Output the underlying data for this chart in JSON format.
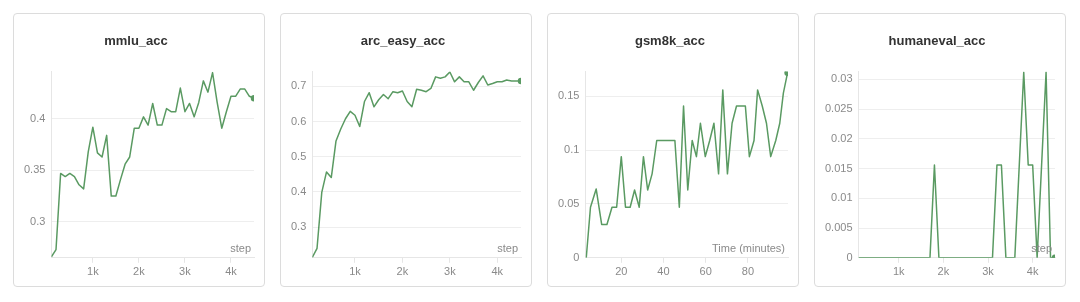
{
  "chart_data": [
    {
      "type": "line",
      "title": "mmlu_acc",
      "xlabel": "step",
      "grid": "y",
      "xlim": [
        100,
        4500
      ],
      "xticks": [
        {
          "value": 1000,
          "label": "1k"
        },
        {
          "value": 2000,
          "label": "2k"
        },
        {
          "value": 3000,
          "label": "3k"
        },
        {
          "value": 4000,
          "label": "4k"
        }
      ],
      "ylim": [
        0.265,
        0.446
      ],
      "yticks": [
        0.3,
        0.35,
        0.4
      ],
      "x": [
        100,
        200,
        300,
        400,
        500,
        600,
        700,
        800,
        900,
        1000,
        1100,
        1200,
        1300,
        1400,
        1500,
        1600,
        1700,
        1800,
        1900,
        2000,
        2100,
        2200,
        2300,
        2400,
        2500,
        2600,
        2700,
        2800,
        2900,
        3000,
        3100,
        3200,
        3300,
        3400,
        3500,
        3600,
        3700,
        3800,
        3900,
        4000,
        4100,
        4200,
        4300,
        4400,
        4500
      ],
      "series": [
        {
          "color": "#5a9a62",
          "values": [
            0.266,
            0.273,
            0.347,
            0.344,
            0.347,
            0.344,
            0.336,
            0.332,
            0.368,
            0.392,
            0.367,
            0.363,
            0.384,
            0.325,
            0.325,
            0.341,
            0.356,
            0.363,
            0.391,
            0.391,
            0.402,
            0.394,
            0.415,
            0.394,
            0.394,
            0.41,
            0.407,
            0.407,
            0.43,
            0.407,
            0.415,
            0.402,
            0.416,
            0.437,
            0.426,
            0.445,
            0.416,
            0.391,
            0.407,
            0.422,
            0.422,
            0.429,
            0.429,
            0.422,
            0.42
          ]
        }
      ]
    },
    {
      "type": "line",
      "title": "arc_easy_acc",
      "xlabel": "step",
      "grid": "y",
      "xlim": [
        100,
        4500
      ],
      "xticks": [
        {
          "value": 1000,
          "label": "1k"
        },
        {
          "value": 2000,
          "label": "2k"
        },
        {
          "value": 3000,
          "label": "3k"
        },
        {
          "value": 4000,
          "label": "4k"
        }
      ],
      "ylim": [
        0.213,
        0.742
      ],
      "yticks": [
        0.3,
        0.4,
        0.5,
        0.6,
        0.7
      ],
      "x": [
        100,
        200,
        300,
        400,
        500,
        600,
        700,
        800,
        900,
        1000,
        1100,
        1200,
        1300,
        1400,
        1500,
        1600,
        1700,
        1800,
        1900,
        2000,
        2100,
        2200,
        2300,
        2400,
        2500,
        2600,
        2700,
        2800,
        2900,
        3000,
        3100,
        3200,
        3300,
        3400,
        3500,
        3600,
        3700,
        3800,
        3900,
        4000,
        4100,
        4200,
        4300,
        4400,
        4500
      ],
      "series": [
        {
          "color": "#5a9a62",
          "values": [
            0.214,
            0.24,
            0.399,
            0.457,
            0.441,
            0.545,
            0.579,
            0.608,
            0.629,
            0.618,
            0.586,
            0.657,
            0.682,
            0.642,
            0.662,
            0.677,
            0.665,
            0.685,
            0.682,
            0.687,
            0.657,
            0.642,
            0.692,
            0.689,
            0.685,
            0.694,
            0.727,
            0.723,
            0.727,
            0.741,
            0.713,
            0.727,
            0.713,
            0.713,
            0.689,
            0.711,
            0.73,
            0.704,
            0.708,
            0.713,
            0.713,
            0.718,
            0.715,
            0.715,
            0.715
          ]
        }
      ]
    },
    {
      "type": "line",
      "title": "gsm8k_acc",
      "xlabel": "Time (minutes)",
      "grid": "y",
      "xlim": [
        3,
        99
      ],
      "xticks": [
        20,
        40,
        60,
        80
      ],
      "ylim": [
        0,
        0.173
      ],
      "yticks": [
        0,
        0.05,
        0.1,
        0.15
      ],
      "x": [
        3.4,
        5.4,
        8.1,
        10.7,
        13.2,
        15.6,
        17.8,
        20,
        22,
        24.2,
        26.3,
        28.5,
        30.5,
        32.5,
        34.6,
        36.8,
        38.8,
        41,
        43.2,
        45.4,
        47.5,
        49.5,
        51.5,
        53.6,
        55.6,
        57.5,
        59.8,
        61.9,
        63.9,
        66.1,
        68.1,
        70.3,
        72.5,
        74.6,
        76.8,
        78.8,
        80.7,
        82.9,
        84.6,
        86.8,
        88.8,
        90.8,
        93.2,
        95.1,
        96.8,
        98.8
      ],
      "series": [
        {
          "color": "#5a9a62",
          "values": [
            0,
            0.047,
            0.064,
            0.031,
            0.031,
            0.047,
            0.047,
            0.094,
            0.047,
            0.047,
            0.063,
            0.047,
            0.094,
            0.063,
            0.078,
            0.109,
            0.109,
            0.109,
            0.109,
            0.109,
            0.047,
            0.141,
            0.063,
            0.109,
            0.094,
            0.125,
            0.094,
            0.109,
            0.125,
            0.078,
            0.156,
            0.078,
            0.125,
            0.141,
            0.141,
            0.141,
            0.094,
            0.109,
            0.156,
            0.141,
            0.125,
            0.094,
            0.109,
            0.125,
            0.153,
            0.172
          ]
        }
      ]
    },
    {
      "type": "line",
      "title": "humaneval_acc",
      "xlabel": "step",
      "grid": "y",
      "xlim": [
        100,
        4500
      ],
      "xticks": [
        {
          "value": 1000,
          "label": "1k"
        },
        {
          "value": 2000,
          "label": "2k"
        },
        {
          "value": 3000,
          "label": "3k"
        },
        {
          "value": 4000,
          "label": "4k"
        }
      ],
      "ylim": [
        0,
        0.0313
      ],
      "yticks": [
        0,
        0.005,
        0.01,
        0.015,
        0.02,
        0.025,
        0.03
      ],
      "x": [
        100,
        200,
        300,
        400,
        500,
        600,
        700,
        800,
        900,
        1000,
        1100,
        1200,
        1300,
        1400,
        1500,
        1600,
        1700,
        1800,
        1900,
        2000,
        2100,
        2200,
        2300,
        2400,
        2500,
        2600,
        2700,
        2800,
        2900,
        3000,
        3100,
        3200,
        3300,
        3400,
        3500,
        3600,
        3700,
        3800,
        3900,
        4000,
        4100,
        4200,
        4300,
        4400,
        4500
      ],
      "series": [
        {
          "color": "#5a9a62",
          "values": [
            0,
            0,
            0,
            0,
            0,
            0,
            0,
            0,
            0,
            0,
            0,
            0,
            0,
            0,
            0,
            0,
            0,
            0.0156,
            0,
            0,
            0,
            0,
            0,
            0,
            0,
            0,
            0,
            0,
            0,
            0,
            0,
            0.0156,
            0.0156,
            0,
            0,
            0,
            0.0156,
            0.0312,
            0.0156,
            0.0156,
            0,
            0.0156,
            0.0312,
            0,
            0
          ]
        }
      ]
    }
  ]
}
